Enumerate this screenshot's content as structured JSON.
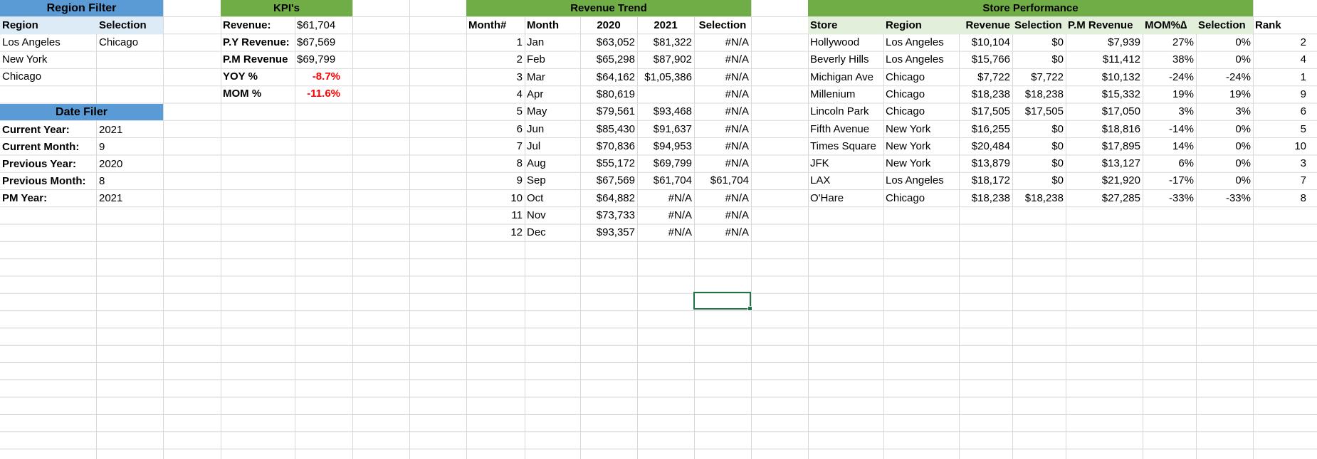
{
  "region_filter": {
    "title": "Region Filter",
    "col_region": "Region",
    "col_selection": "Selection",
    "regions": [
      "Los Angeles",
      "New York",
      "Chicago"
    ],
    "selection": "Chicago"
  },
  "date_filter": {
    "title": "Date Filer",
    "rows": [
      {
        "label": "Current Year:",
        "value": "2021"
      },
      {
        "label": "Current Month:",
        "value": "9"
      },
      {
        "label": "Previous Year:",
        "value": "2020"
      },
      {
        "label": "Previous Month:",
        "value": "8"
      },
      {
        "label": "PM Year:",
        "value": "2021"
      }
    ]
  },
  "kpis": {
    "title": "KPI's",
    "rows": [
      {
        "label": "Revenue:",
        "value": "$61,704"
      },
      {
        "label": "P.Y Revenue:",
        "value": "$67,569"
      },
      {
        "label": "P.M Revenue",
        "value": "$69,799"
      },
      {
        "label": "YOY %",
        "value": "-8.7%"
      },
      {
        "label": "MOM %",
        "value": "-11.6%"
      }
    ]
  },
  "revenue_trend": {
    "title": "Revenue Trend",
    "headers": [
      "Month#",
      "Month",
      "2020",
      "2021",
      "Selection"
    ],
    "rows": [
      [
        "1",
        "Jan",
        "$63,052",
        "$81,322",
        "#N/A"
      ],
      [
        "2",
        "Feb",
        "$65,298",
        "$87,902",
        "#N/A"
      ],
      [
        "3",
        "Mar",
        "$64,162",
        "$1,05,386",
        "#N/A"
      ],
      [
        "4",
        "Apr",
        "$80,619",
        "",
        "#N/A"
      ],
      [
        "5",
        "May",
        "$79,561",
        "$93,468",
        "#N/A"
      ],
      [
        "6",
        "Jun",
        "$85,430",
        "$91,637",
        "#N/A"
      ],
      [
        "7",
        "Jul",
        "$70,836",
        "$94,953",
        "#N/A"
      ],
      [
        "8",
        "Aug",
        "$55,172",
        "$69,799",
        "#N/A"
      ],
      [
        "9",
        "Sep",
        "$67,569",
        "$61,704",
        "$61,704"
      ],
      [
        "10",
        "Oct",
        "$64,882",
        "#N/A",
        "#N/A"
      ],
      [
        "11",
        "Nov",
        "$73,733",
        "#N/A",
        "#N/A"
      ],
      [
        "12",
        "Dec",
        "$93,357",
        "#N/A",
        "#N/A"
      ]
    ]
  },
  "store_performance": {
    "title": "Store Performance",
    "headers": [
      "Store",
      "Region",
      "Revenue",
      "Selection",
      "P.M Revenue",
      "MOM%∆",
      "Selection",
      "Rank"
    ],
    "rows": [
      [
        "Hollywood",
        "Los Angeles",
        "$10,104",
        "$0",
        "$7,939",
        "27%",
        "0%",
        "2"
      ],
      [
        "Beverly Hills",
        "Los Angeles",
        "$15,766",
        "$0",
        "$11,412",
        "38%",
        "0%",
        "4"
      ],
      [
        "Michigan Ave",
        "Chicago",
        "$7,722",
        "$7,722",
        "$10,132",
        "-24%",
        "-24%",
        "1"
      ],
      [
        "Millenium",
        "Chicago",
        "$18,238",
        "$18,238",
        "$15,332",
        "19%",
        "19%",
        "9"
      ],
      [
        "Lincoln Park",
        "Chicago",
        "$17,505",
        "$17,505",
        "$17,050",
        "3%",
        "3%",
        "6"
      ],
      [
        "Fifth Avenue",
        "New York",
        "$16,255",
        "$0",
        "$18,816",
        "-14%",
        "0%",
        "5"
      ],
      [
        "Times Square",
        "New York",
        "$20,484",
        "$0",
        "$17,895",
        "14%",
        "0%",
        "10"
      ],
      [
        "JFK",
        "New York",
        "$13,879",
        "$0",
        "$13,127",
        "6%",
        "0%",
        "3"
      ],
      [
        "LAX",
        "Los Angeles",
        "$18,172",
        "$0",
        "$21,920",
        "-17%",
        "0%",
        "7"
      ],
      [
        "O'Hare",
        "Chicago",
        "$18,238",
        "$18,238",
        "$27,285",
        "-33%",
        "-33%",
        "8"
      ]
    ]
  },
  "colors": {
    "blue_banner": "#5b9bd5",
    "green_banner": "#70ad47",
    "blue_header": "#ddebf7",
    "green_header": "#e2efda",
    "negative": "#ff0000",
    "gridline": "#d9d9d9"
  }
}
